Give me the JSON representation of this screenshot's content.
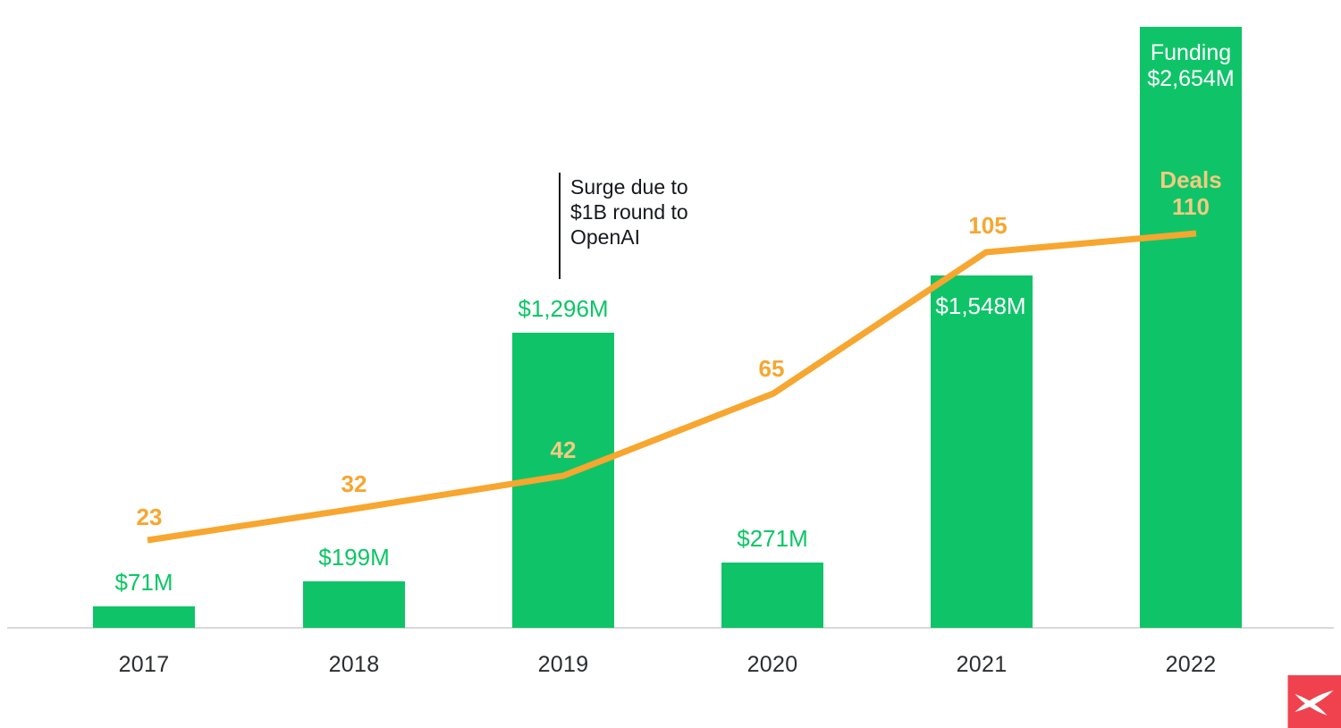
{
  "chart_data": {
    "type": "bar",
    "categories": [
      "2017",
      "2018",
      "2019",
      "2020",
      "2021",
      "2022"
    ],
    "series": [
      {
        "name": "Funding",
        "type": "bar",
        "values": [
          71,
          199,
          1296,
          271,
          1548,
          2654
        ],
        "labels": [
          "$71M",
          "$199M",
          "$1,296M",
          "$271M",
          "$1,548M",
          "$2,654M"
        ]
      },
      {
        "name": "Deals",
        "type": "line",
        "values": [
          23,
          32,
          42,
          65,
          105,
          110
        ],
        "labels": [
          "23",
          "32",
          "42",
          "65",
          "105",
          "110"
        ]
      }
    ],
    "annotation": {
      "line1": "Surge due to",
      "line2": "$1B round to",
      "line3": "OpenAI",
      "target": "2019"
    },
    "xlabel": "",
    "ylabel": "",
    "grid": false,
    "legend_position": "inside-last-bar",
    "axis_range_note": "no numeric axes shown; values labeled on marks",
    "colors": {
      "bar_green": "#0FC468",
      "bar_label_green": "#0BC765",
      "line_orange": "#F7A62F",
      "deals_label_on_bar_cream": "#F3CB81",
      "in_bar_text_white": "#FFFFFF",
      "axis_gray": "#D9D9D9",
      "annotation_black": "#15181C",
      "year_label_gray": "#2B2D2F",
      "logo_red": "#F0424E",
      "logo_glyph_white": "#FFFFFF"
    }
  }
}
